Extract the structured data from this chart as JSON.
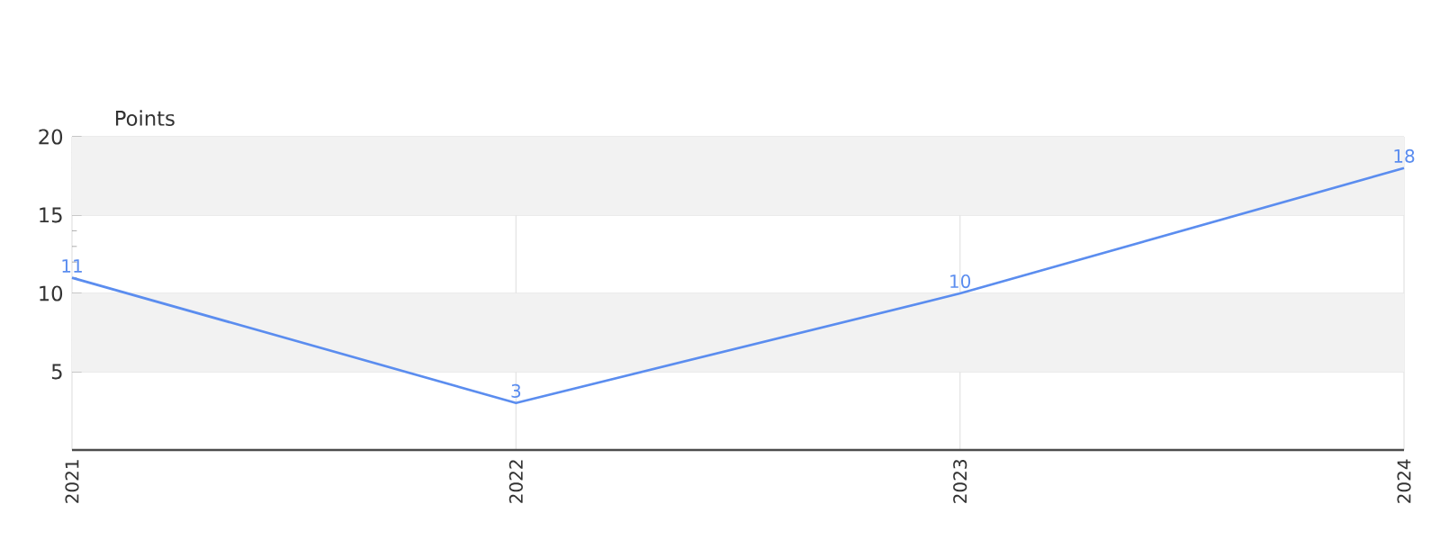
{
  "chart_data": {
    "type": "line",
    "ylabel": "Points",
    "categories": [
      "2021",
      "2022",
      "2023",
      "2024"
    ],
    "series": [
      {
        "color": "#5b8def",
        "values": [
          11,
          3,
          10,
          18
        ]
      }
    ],
    "ylim": [
      0,
      20
    ],
    "yticks": [
      5,
      10,
      15,
      20
    ],
    "grid": true,
    "data_labels": true,
    "marker": "none",
    "bands": [
      {
        "axis": "y",
        "from": 5,
        "to": 10,
        "color": "#f2f2f2"
      },
      {
        "axis": "y",
        "from": 15,
        "to": 20,
        "color": "#f2f2f2"
      }
    ]
  }
}
